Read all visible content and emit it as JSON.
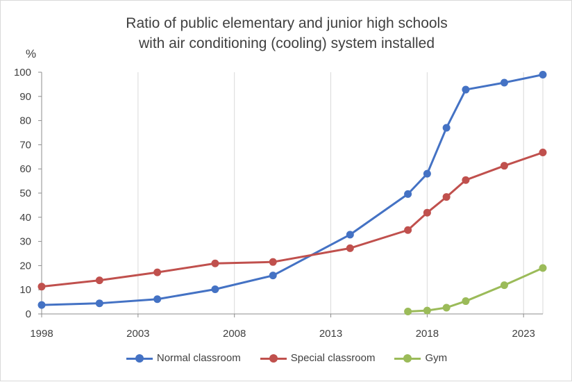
{
  "chart_data": {
    "type": "line",
    "title_line1": "Ratio of public elementary and junior high schools",
    "title_line2": "with air conditioning (cooling) system installed",
    "ylabel": "%",
    "xlabel": "",
    "xlim": [
      1998,
      2024
    ],
    "ylim": [
      0,
      100
    ],
    "x_ticks": [
      1998,
      2003,
      2008,
      2013,
      2018,
      2023
    ],
    "y_ticks": [
      0,
      10,
      20,
      30,
      40,
      50,
      60,
      70,
      80,
      90,
      100
    ],
    "grid": "vertical",
    "legend_position": "bottom",
    "series": [
      {
        "name": "Normal classroom",
        "color": "#4472c4",
        "points": [
          [
            1998,
            3.7
          ],
          [
            2001,
            4.4
          ],
          [
            2004,
            6.1
          ],
          [
            2007,
            10.2
          ],
          [
            2010,
            15.9
          ],
          [
            2014,
            32.8
          ],
          [
            2017,
            49.6
          ],
          [
            2018,
            58.0
          ],
          [
            2019,
            77.0
          ],
          [
            2020,
            92.8
          ],
          [
            2022,
            95.7
          ],
          [
            2024,
            99.0
          ]
        ]
      },
      {
        "name": "Special classroom",
        "color": "#c0504d",
        "points": [
          [
            1998,
            11.3
          ],
          [
            2001,
            13.9
          ],
          [
            2004,
            17.2
          ],
          [
            2007,
            20.9
          ],
          [
            2010,
            21.5
          ],
          [
            2014,
            27.2
          ],
          [
            2017,
            34.7
          ],
          [
            2018,
            41.9
          ],
          [
            2019,
            48.4
          ],
          [
            2020,
            55.4
          ],
          [
            2022,
            61.3
          ],
          [
            2024,
            66.8
          ]
        ]
      },
      {
        "name": "Gym",
        "color": "#9bbb59",
        "points": [
          [
            2017,
            1.0
          ],
          [
            2018,
            1.4
          ],
          [
            2019,
            2.6
          ],
          [
            2020,
            5.3
          ],
          [
            2022,
            11.9
          ],
          [
            2024,
            19.0
          ]
        ]
      }
    ]
  }
}
